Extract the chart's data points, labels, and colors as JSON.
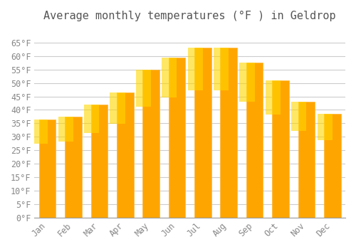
{
  "title": "Average monthly temperatures (°F ) in Geldrop",
  "months": [
    "Jan",
    "Feb",
    "Mar",
    "Apr",
    "May",
    "Jun",
    "Jul",
    "Aug",
    "Sep",
    "Oct",
    "Nov",
    "Dec"
  ],
  "values": [
    36.5,
    37.5,
    42.0,
    46.5,
    55.0,
    59.5,
    63.0,
    63.0,
    57.5,
    51.0,
    43.0,
    38.5
  ],
  "bar_color": "#FFA500",
  "bar_edge_color": "#FFB733",
  "bar_gradient_top": "#FFD700",
  "ylim": [
    0,
    70
  ],
  "yticks": [
    0,
    5,
    10,
    15,
    20,
    25,
    30,
    35,
    40,
    45,
    50,
    55,
    60,
    65
  ],
  "ytick_labels": [
    "0°F",
    "5°F",
    "10°F",
    "15°F",
    "20°F",
    "25°F",
    "30°F",
    "35°F",
    "40°F",
    "45°F",
    "50°F",
    "55°F",
    "60°F",
    "65°F"
  ],
  "background_color": "#ffffff",
  "grid_color": "#cccccc",
  "title_fontsize": 11,
  "tick_fontsize": 8.5,
  "font_family": "monospace"
}
